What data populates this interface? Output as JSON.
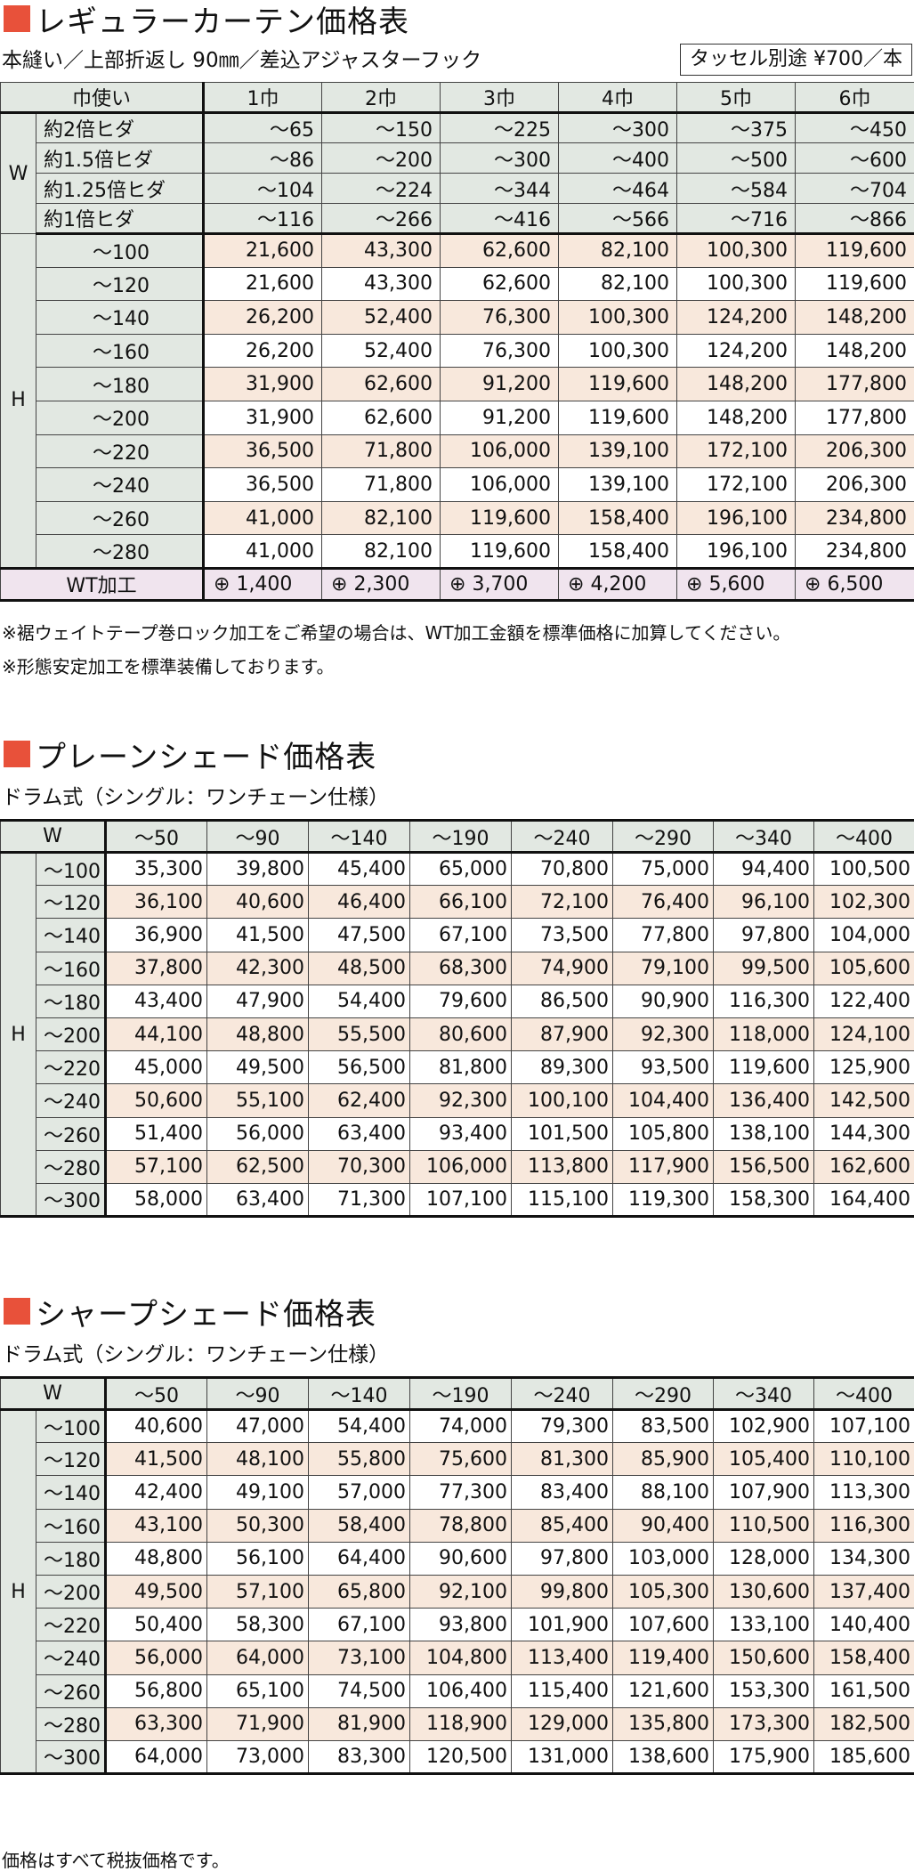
{
  "regular": {
    "title": "レギュラーカーテン価格表",
    "subtitle": "本縫い／上部折返し 90㎜／差込アジャスターフック",
    "tassel": "タッセル別途 ¥700／本",
    "header": [
      "巾使い",
      "1巾",
      "2巾",
      "3巾",
      "4巾",
      "5巾",
      "6巾"
    ],
    "w_label": "W",
    "w_rows": [
      {
        "label": "約2倍ヒダ",
        "values": [
          "～65",
          "～150",
          "～225",
          "～300",
          "～375",
          "～450"
        ]
      },
      {
        "label": "約1.5倍ヒダ",
        "values": [
          "～86",
          "～200",
          "～300",
          "～400",
          "～500",
          "～600"
        ]
      },
      {
        "label": "約1.25倍ヒダ",
        "values": [
          "～104",
          "～224",
          "～344",
          "～464",
          "～584",
          "～704"
        ]
      },
      {
        "label": "約1倍ヒダ",
        "values": [
          "～116",
          "～266",
          "～416",
          "～566",
          "～716",
          "～866"
        ]
      }
    ],
    "h_label": "H",
    "h_rows": [
      {
        "label": "～100",
        "values": [
          "21,600",
          "43,300",
          "62,600",
          "82,100",
          "100,300",
          "119,600"
        ]
      },
      {
        "label": "～120",
        "values": [
          "21,600",
          "43,300",
          "62,600",
          "82,100",
          "100,300",
          "119,600"
        ]
      },
      {
        "label": "～140",
        "values": [
          "26,200",
          "52,400",
          "76,300",
          "100,300",
          "124,200",
          "148,200"
        ]
      },
      {
        "label": "～160",
        "values": [
          "26,200",
          "52,400",
          "76,300",
          "100,300",
          "124,200",
          "148,200"
        ]
      },
      {
        "label": "～180",
        "values": [
          "31,900",
          "62,600",
          "91,200",
          "119,600",
          "148,200",
          "177,800"
        ]
      },
      {
        "label": "～200",
        "values": [
          "31,900",
          "62,600",
          "91,200",
          "119,600",
          "148,200",
          "177,800"
        ]
      },
      {
        "label": "～220",
        "values": [
          "36,500",
          "71,800",
          "106,000",
          "139,100",
          "172,100",
          "206,300"
        ]
      },
      {
        "label": "～240",
        "values": [
          "36,500",
          "71,800",
          "106,000",
          "139,100",
          "172,100",
          "206,300"
        ]
      },
      {
        "label": "～260",
        "values": [
          "41,000",
          "82,100",
          "119,600",
          "158,400",
          "196,100",
          "234,800"
        ]
      },
      {
        "label": "～280",
        "values": [
          "41,000",
          "82,100",
          "119,600",
          "158,400",
          "196,100",
          "234,800"
        ]
      }
    ],
    "wt": {
      "label": "WT加工",
      "values": [
        "⊕ 1,400",
        "⊕ 2,300",
        "⊕ 3,700",
        "⊕ 4,200",
        "⊕ 5,600",
        "⊕ 6,500"
      ]
    },
    "notes": [
      "※裾ウェイトテープ巻ロック加工をご希望の場合は、WT加工金額を標準価格に加算してください。",
      "※形態安定加工を標準装備しております。"
    ]
  },
  "plain": {
    "title": "プレーンシェード価格表",
    "subtitle": "ドラム式（シングル：ワンチェーン仕様）",
    "w_label": "W",
    "h_label": "H",
    "cols": [
      "～50",
      "～90",
      "～140",
      "～190",
      "～240",
      "～290",
      "～340",
      "～400"
    ],
    "rows": [
      {
        "label": "～100",
        "values": [
          "35,300",
          "39,800",
          "45,400",
          "65,000",
          "70,800",
          "75,000",
          "94,400",
          "100,500"
        ]
      },
      {
        "label": "～120",
        "values": [
          "36,100",
          "40,600",
          "46,400",
          "66,100",
          "72,100",
          "76,400",
          "96,100",
          "102,300"
        ]
      },
      {
        "label": "～140",
        "values": [
          "36,900",
          "41,500",
          "47,500",
          "67,100",
          "73,500",
          "77,800",
          "97,800",
          "104,000"
        ]
      },
      {
        "label": "～160",
        "values": [
          "37,800",
          "42,300",
          "48,500",
          "68,300",
          "74,900",
          "79,100",
          "99,500",
          "105,600"
        ]
      },
      {
        "label": "～180",
        "values": [
          "43,400",
          "47,900",
          "54,400",
          "79,600",
          "86,500",
          "90,900",
          "116,300",
          "122,400"
        ]
      },
      {
        "label": "～200",
        "values": [
          "44,100",
          "48,800",
          "55,500",
          "80,600",
          "87,900",
          "92,300",
          "118,000",
          "124,100"
        ]
      },
      {
        "label": "～220",
        "values": [
          "45,000",
          "49,500",
          "56,500",
          "81,800",
          "89,300",
          "93,500",
          "119,600",
          "125,900"
        ]
      },
      {
        "label": "～240",
        "values": [
          "50,600",
          "55,100",
          "62,400",
          "92,300",
          "100,100",
          "104,400",
          "136,400",
          "142,500"
        ]
      },
      {
        "label": "～260",
        "values": [
          "51,400",
          "56,000",
          "63,400",
          "93,400",
          "101,500",
          "105,800",
          "138,100",
          "144,300"
        ]
      },
      {
        "label": "～280",
        "values": [
          "57,100",
          "62,500",
          "70,300",
          "106,000",
          "113,800",
          "117,900",
          "156,500",
          "162,600"
        ]
      },
      {
        "label": "～300",
        "values": [
          "58,000",
          "63,400",
          "71,300",
          "107,100",
          "115,100",
          "119,300",
          "158,300",
          "164,400"
        ]
      }
    ]
  },
  "sharp": {
    "title": "シャープシェード価格表",
    "subtitle": "ドラム式（シングル：ワンチェーン仕様）",
    "w_label": "W",
    "h_label": "H",
    "cols": [
      "～50",
      "～90",
      "～140",
      "～190",
      "～240",
      "～290",
      "～340",
      "～400"
    ],
    "rows": [
      {
        "label": "～100",
        "values": [
          "40,600",
          "47,000",
          "54,400",
          "74,000",
          "79,300",
          "83,500",
          "102,900",
          "107,100"
        ]
      },
      {
        "label": "～120",
        "values": [
          "41,500",
          "48,100",
          "55,800",
          "75,600",
          "81,300",
          "85,900",
          "105,400",
          "110,100"
        ]
      },
      {
        "label": "～140",
        "values": [
          "42,400",
          "49,100",
          "57,000",
          "77,300",
          "83,400",
          "88,100",
          "107,900",
          "113,300"
        ]
      },
      {
        "label": "～160",
        "values": [
          "43,100",
          "50,300",
          "58,400",
          "78,800",
          "85,400",
          "90,400",
          "110,500",
          "116,300"
        ]
      },
      {
        "label": "～180",
        "values": [
          "48,800",
          "56,100",
          "64,400",
          "90,600",
          "97,800",
          "103,000",
          "128,000",
          "134,300"
        ]
      },
      {
        "label": "～200",
        "values": [
          "49,500",
          "57,100",
          "65,800",
          "92,100",
          "99,800",
          "105,300",
          "130,600",
          "137,400"
        ]
      },
      {
        "label": "～220",
        "values": [
          "50,400",
          "58,300",
          "67,100",
          "93,800",
          "101,900",
          "107,600",
          "133,100",
          "140,400"
        ]
      },
      {
        "label": "～240",
        "values": [
          "56,000",
          "64,000",
          "73,100",
          "104,800",
          "113,400",
          "119,400",
          "150,600",
          "158,400"
        ]
      },
      {
        "label": "～260",
        "values": [
          "56,800",
          "65,100",
          "74,500",
          "106,400",
          "115,400",
          "121,600",
          "153,300",
          "161,500"
        ]
      },
      {
        "label": "～280",
        "values": [
          "63,300",
          "71,900",
          "81,900",
          "118,900",
          "129,000",
          "135,800",
          "173,300",
          "182,500"
        ]
      },
      {
        "label": "～300",
        "values": [
          "64,000",
          "73,000",
          "83,300",
          "120,500",
          "131,000",
          "138,600",
          "175,900",
          "185,600"
        ]
      }
    ]
  },
  "footer_note": "価格はすべて税抜価格です。",
  "colors": {
    "accent": "#e8513a",
    "header_bg": "#e2e8e2",
    "peach_row": "#f8e8dc",
    "wt_row": "#f0e4ee"
  }
}
